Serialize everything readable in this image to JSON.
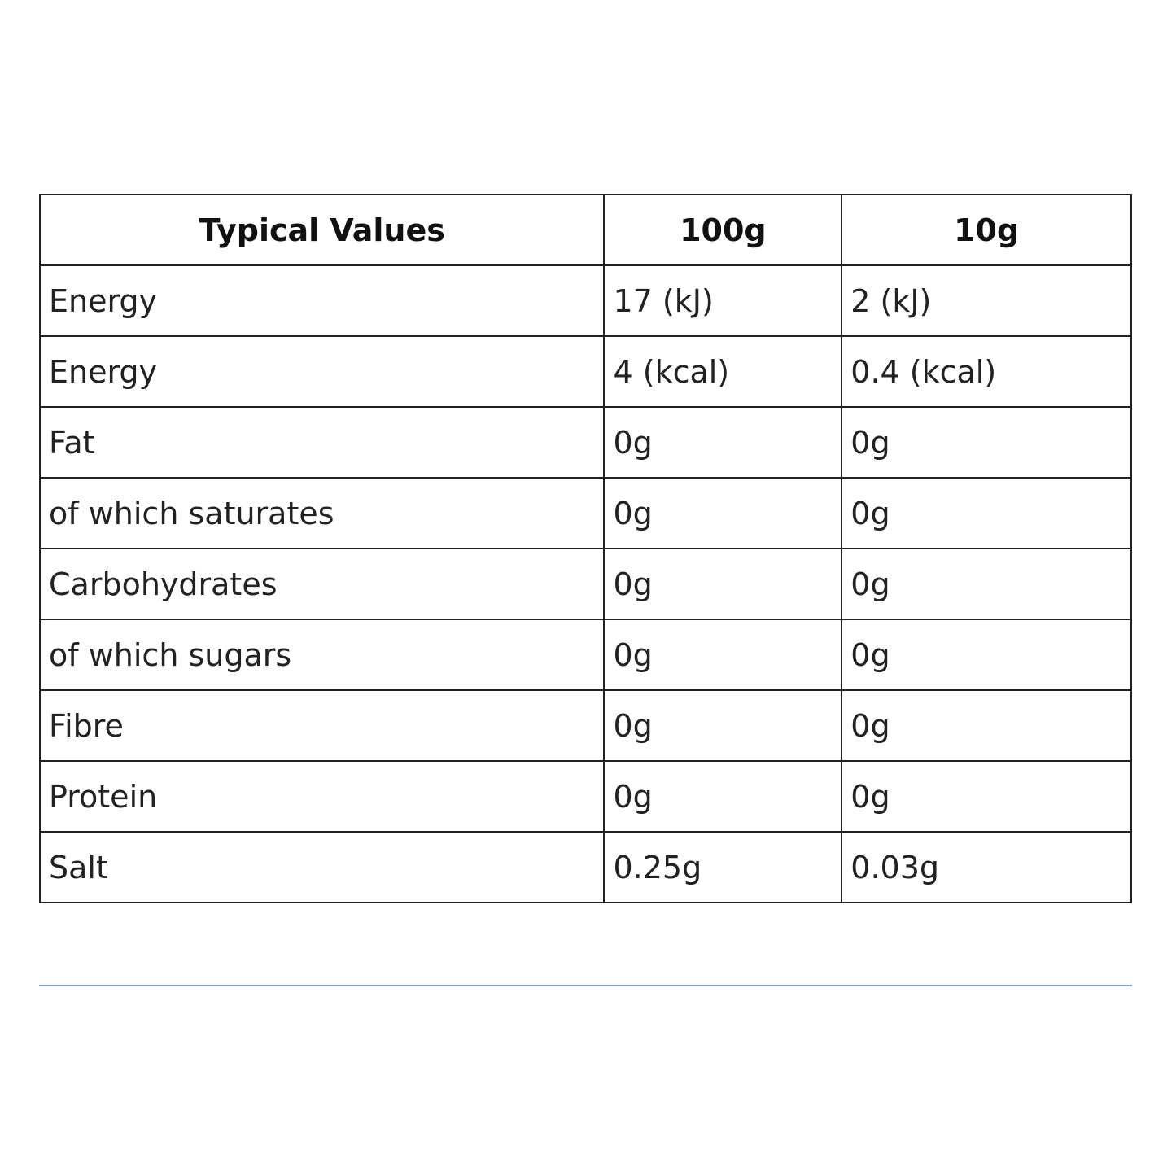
{
  "table": {
    "header": [
      "Typical Values",
      "100g",
      "10g"
    ],
    "rows": [
      [
        "Energy",
        "17 (kJ)",
        "2 (kJ)"
      ],
      [
        "Energy",
        "4 (kcal)",
        "0.4 (kcal)"
      ],
      [
        "Fat",
        "0g",
        "0g"
      ],
      [
        "of which saturates",
        "0g",
        "0g"
      ],
      [
        "Carbohydrates",
        "0g",
        "0g"
      ],
      [
        "of which sugars",
        "0g",
        "0g"
      ],
      [
        "Fibre",
        "0g",
        "0g"
      ],
      [
        "Protein",
        "0g",
        "0g"
      ],
      [
        "Salt",
        "0.25g",
        "0.03g"
      ]
    ]
  }
}
